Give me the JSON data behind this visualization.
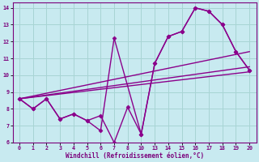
{
  "xlabel": "Windchill (Refroidissement éolien,°C)",
  "xlim": [
    -0.5,
    17.5
  ],
  "ylim": [
    6,
    14.3
  ],
  "xtick_labels": [
    "0",
    "1",
    "2",
    "3",
    "4",
    "5",
    "6",
    "7",
    "8",
    "10",
    "13",
    "14",
    "15",
    "16",
    "17",
    "18",
    "19",
    "20"
  ],
  "ytick_labels": [
    "6",
    "7",
    "8",
    "9",
    "10",
    "11",
    "12",
    "13",
    "14"
  ],
  "bg_color": "#c8eaf0",
  "line_color": "#8B008B",
  "grid_color": "#a8d4d4",
  "series": [
    {
      "xi": [
        0,
        1,
        2,
        3,
        4,
        5,
        6,
        7,
        9,
        10,
        11,
        12,
        13,
        14,
        15,
        16,
        17
      ],
      "y": [
        8.6,
        8.0,
        8.6,
        7.4,
        7.7,
        7.3,
        6.7,
        12.2,
        6.5,
        10.7,
        12.3,
        12.6,
        14.0,
        13.8,
        13.0,
        11.4,
        10.3
      ],
      "has_markers": true
    },
    {
      "xi": [
        0,
        1,
        2,
        3,
        4,
        5,
        6,
        7,
        8,
        9,
        10,
        11,
        12,
        13,
        14,
        15,
        16,
        17
      ],
      "y": [
        8.6,
        8.0,
        8.6,
        7.4,
        7.7,
        7.3,
        7.6,
        6.0,
        8.1,
        6.5,
        10.7,
        12.3,
        12.6,
        14.0,
        13.8,
        13.0,
        11.4,
        10.3
      ],
      "has_markers": true
    },
    {
      "xi": [
        0,
        17
      ],
      "y": [
        8.6,
        11.4
      ],
      "has_markers": false
    },
    {
      "xi": [
        0,
        17
      ],
      "y": [
        8.6,
        10.5
      ],
      "has_markers": false
    },
    {
      "xi": [
        0,
        17
      ],
      "y": [
        8.6,
        10.2
      ],
      "has_markers": false
    }
  ],
  "marker": "D",
  "markersize": 2.5,
  "linewidth": 1.0
}
